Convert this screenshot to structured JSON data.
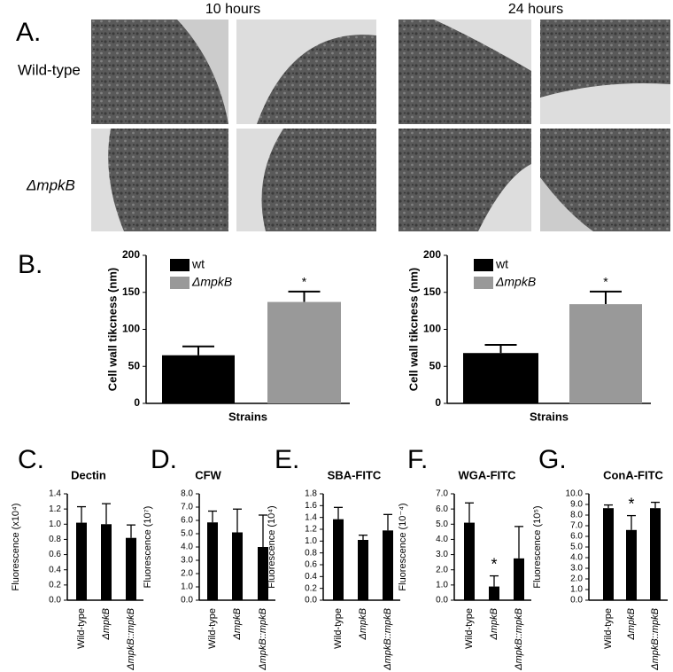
{
  "panel_a": {
    "label": "A.",
    "columns": [
      "10 hours",
      "24 hours"
    ],
    "rows": [
      "Wild-type",
      "ΔmpkB"
    ]
  },
  "chart_data": [
    {
      "type": "bar",
      "panel": "B.",
      "ylabel": "Cell wall tikcness (nm)",
      "xlabel": "Strains",
      "ylim": [
        0,
        200
      ],
      "yticks": [
        0,
        50,
        100,
        150,
        200
      ],
      "significance_label": "*",
      "significant": [
        false,
        true
      ],
      "series": [
        {
          "name": "wt",
          "color": "#000000",
          "values": [
            65
          ],
          "errors": [
            12
          ]
        },
        {
          "name": "ΔmpkB",
          "color": "#999999",
          "values": [
            137
          ],
          "errors": [
            14
          ]
        }
      ]
    },
    {
      "type": "bar",
      "ylabel": "Cell wall tikcness (nm)",
      "xlabel": "Strains",
      "ylim": [
        0,
        200
      ],
      "yticks": [
        0,
        50,
        100,
        150,
        200
      ],
      "significance_label": "*",
      "significant": [
        false,
        true
      ],
      "series": [
        {
          "name": "wt",
          "color": "#000000",
          "values": [
            68
          ],
          "errors": [
            11
          ]
        },
        {
          "name": "ΔmpkB",
          "color": "#999999",
          "values": [
            134
          ],
          "errors": [
            17
          ]
        }
      ]
    },
    {
      "type": "bar",
      "panel": "C.",
      "title": "Dectin",
      "ylabel": "Fluorescence (x10⁴)",
      "color": "#000000",
      "categories": [
        "Wild-type",
        "ΔmpkB",
        "ΔmpkB::mpkB"
      ],
      "values": [
        1.02,
        1.0,
        0.82
      ],
      "errors": [
        0.21,
        0.27,
        0.17
      ],
      "ylim": [
        0,
        1.4
      ],
      "yticks": [
        {
          "value": 0,
          "label": "0.0"
        },
        0.2,
        0.4,
        0.6,
        0.8,
        {
          "value": 1,
          "label": "1.0"
        },
        1.2,
        1.4
      ]
    },
    {
      "type": "bar",
      "panel": "D.",
      "title": "CFW",
      "ylabel": "Fluorescence (10⁷)",
      "color": "#000000",
      "categories": [
        "Wild-type",
        "ΔmpkB",
        "ΔmpkB::mpkB"
      ],
      "values": [
        5.85,
        5.1,
        4.0
      ],
      "errors": [
        0.85,
        1.75,
        2.4
      ],
      "ylim": [
        0,
        8
      ],
      "yticks": [
        {
          "value": 0,
          "label": "0.0"
        },
        {
          "value": 1,
          "label": "1.0"
        },
        {
          "value": 2,
          "label": "2.0"
        },
        {
          "value": 3,
          "label": "3.0"
        },
        {
          "value": 4,
          "label": "4.0"
        },
        {
          "value": 5,
          "label": "5.0"
        },
        {
          "value": 6,
          "label": "6.0"
        },
        {
          "value": 7,
          "label": "7.0"
        },
        {
          "value": 8,
          "label": "8.0"
        }
      ]
    },
    {
      "type": "bar",
      "panel": "E.",
      "title": "SBA-FITC",
      "ylabel": "Fluorescence (10⁴)",
      "color": "#000000",
      "categories": [
        "Wild-type",
        "ΔmpkB",
        "ΔmpkB::mpkB"
      ],
      "values": [
        1.37,
        1.02,
        1.18
      ],
      "errors": [
        0.2,
        0.08,
        0.27
      ],
      "ylim": [
        0,
        1.8
      ],
      "yticks": [
        {
          "value": 0,
          "label": "0.0"
        },
        0.2,
        0.4,
        0.6,
        0.8,
        {
          "value": 1,
          "label": "1.0"
        },
        1.2,
        1.4,
        1.6,
        1.8
      ]
    },
    {
      "type": "bar",
      "panel": "F.",
      "title": "WGA-FITC",
      "ylabel": "Fluorescence (10⁻⁴)",
      "color": "#000000",
      "categories": [
        "Wild-type",
        "ΔmpkB",
        "ΔmpkB::mpkB"
      ],
      "values": [
        5.1,
        0.9,
        2.75
      ],
      "errors": [
        1.3,
        0.7,
        2.1
      ],
      "significance_label": "*",
      "significant": [
        false,
        true,
        false
      ],
      "ylim": [
        0,
        7
      ],
      "yticks": [
        {
          "value": 0,
          "label": "0.0"
        },
        {
          "value": 1,
          "label": "1.0"
        },
        {
          "value": 2,
          "label": "2.0"
        },
        {
          "value": 3,
          "label": "3.0"
        },
        {
          "value": 4,
          "label": "4.0"
        },
        {
          "value": 5,
          "label": "5.0"
        },
        {
          "value": 6,
          "label": "6.0"
        },
        {
          "value": 7,
          "label": "7.0"
        }
      ]
    },
    {
      "type": "bar",
      "panel": "G.",
      "title": "ConA-FITC",
      "ylabel": "Fluorescence (10⁵)",
      "color": "#000000",
      "categories": [
        "Wild-type",
        "ΔmpkB",
        "ΔmpkB::mpkB"
      ],
      "values": [
        8.65,
        6.6,
        8.65
      ],
      "errors": [
        0.3,
        1.35,
        0.55
      ],
      "significance_label": "*",
      "significant": [
        false,
        true,
        false
      ],
      "ylim": [
        0,
        10
      ],
      "yticks": [
        {
          "value": 0,
          "label": "0.0"
        },
        {
          "value": 1,
          "label": "1.0"
        },
        {
          "value": 2,
          "label": "2.0"
        },
        {
          "value": 3,
          "label": "3.0"
        },
        {
          "value": 4,
          "label": "4.0"
        },
        {
          "value": 5,
          "label": "5.0"
        },
        {
          "value": 6,
          "label": "6.0"
        },
        {
          "value": 7,
          "label": "7.0"
        },
        {
          "value": 8,
          "label": "8.0"
        },
        {
          "value": 9,
          "label": "9.0"
        },
        {
          "value": 10,
          "label": "10.0"
        }
      ]
    }
  ]
}
